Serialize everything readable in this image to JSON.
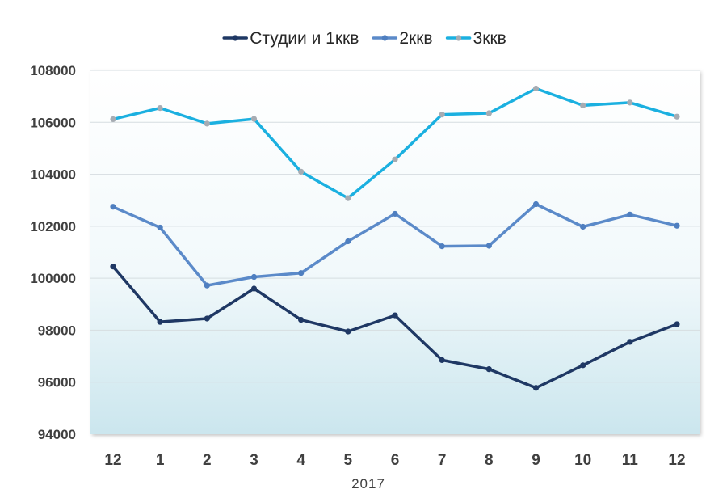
{
  "chart_data": {
    "type": "line",
    "categories": [
      "12",
      "1",
      "2",
      "3",
      "4",
      "5",
      "6",
      "7",
      "8",
      "9",
      "10",
      "11",
      "12"
    ],
    "xlabel": "2017",
    "ylabel": "",
    "ylim": [
      94000,
      108000
    ],
    "yticks": [
      94000,
      96000,
      98000,
      100000,
      102000,
      104000,
      106000,
      108000
    ],
    "grid": true,
    "legend_position": "top",
    "series": [
      {
        "name": "Студии и 1ккв",
        "color": "#1f3864",
        "marker_color": "#1f3864",
        "values": [
          100450,
          98320,
          98450,
          99600,
          98400,
          97950,
          98570,
          96850,
          96500,
          95780,
          96650,
          97550,
          98230
        ]
      },
      {
        "name": "2ккв",
        "color": "#5b8ac9",
        "marker_color": "#4f7fc0",
        "values": [
          102750,
          101950,
          99720,
          100050,
          100200,
          101420,
          102480,
          101230,
          101250,
          102850,
          101980,
          102450,
          102020
        ]
      },
      {
        "name": "3ккв",
        "color": "#1bb0e0",
        "marker_color": "#a6acb3",
        "values": [
          106120,
          106550,
          105950,
          106130,
          104100,
          103080,
          104570,
          106300,
          106350,
          107300,
          106650,
          106760,
          106220
        ]
      }
    ]
  }
}
